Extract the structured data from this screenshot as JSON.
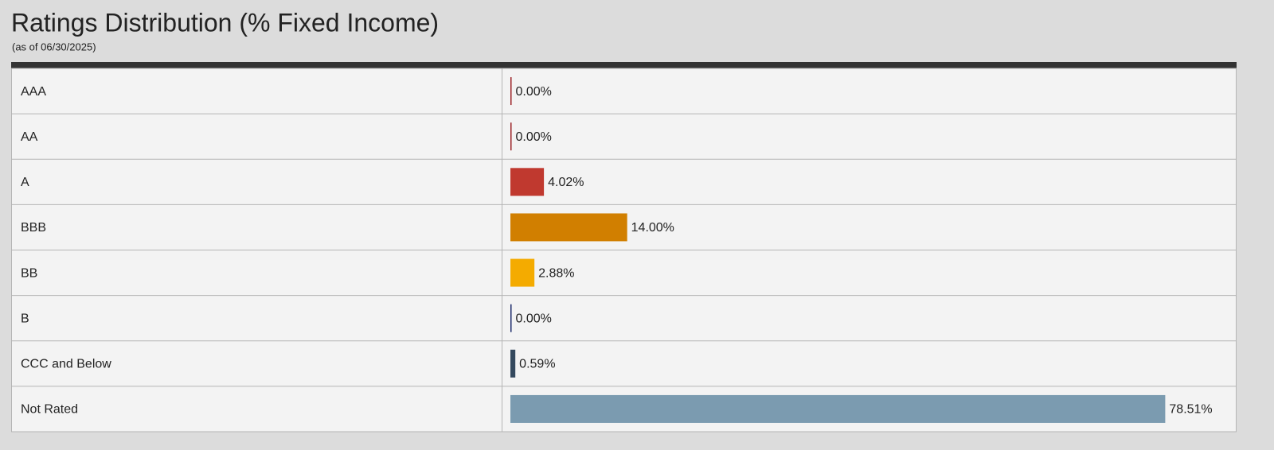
{
  "chart_data": {
    "type": "bar",
    "orientation": "horizontal",
    "title": "Ratings Distribution (% Fixed Income)",
    "subtitle": "(as of 06/30/2025)",
    "categories": [
      "AAA",
      "AA",
      "A",
      "BBB",
      "BB",
      "B",
      "CCC and Below",
      "Not Rated"
    ],
    "values": [
      0,
      0,
      4.02,
      14,
      2.88,
      0,
      0.59,
      78.51
    ],
    "value_labels": [
      "0.00%",
      "0.00%",
      "4.02%",
      "14.00%",
      "2.88%",
      "0.00%",
      "0.59%",
      "78.51%"
    ],
    "colors": [
      "#9b2226",
      "#9b2226",
      "#c0392f",
      "#d17f00",
      "#f4ab00",
      "#1b2a6b",
      "#34495e",
      "#7b9bb0"
    ]
  }
}
